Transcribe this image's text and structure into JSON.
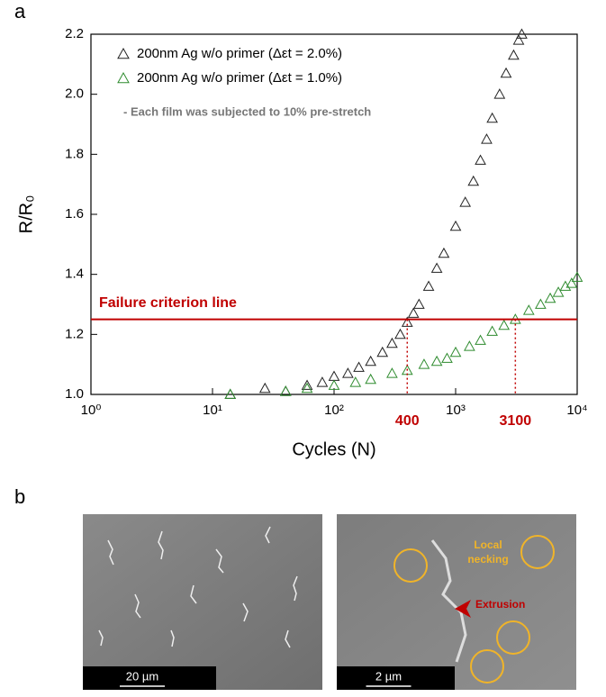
{
  "panel_labels": [
    "a",
    "b"
  ],
  "chart_data": {
    "type": "scatter",
    "xlabel": "Cycles (N)",
    "ylabel": "R/R₀",
    "xscale": "log",
    "xlim": [
      1,
      10000
    ],
    "ylim": [
      1.0,
      2.2
    ],
    "xticks": [
      {
        "value": 1,
        "label": "10⁰"
      },
      {
        "value": 10,
        "label": "10¹"
      },
      {
        "value": 100,
        "label": "10²"
      },
      {
        "value": 1000,
        "label": "10³"
      },
      {
        "value": 10000,
        "label": "10⁴"
      }
    ],
    "yticks": [
      {
        "value": 1.0,
        "label": "1.0"
      },
      1.2,
      1.4,
      1.6,
      1.8,
      {
        "value": 2.0,
        "label": "2.0"
      },
      2.2
    ],
    "series": [
      {
        "name": "200nm Ag w/o primer (Δεt = 2.0%)",
        "color": "#222222",
        "x": [
          14,
          27,
          40,
          60,
          80,
          100,
          130,
          160,
          200,
          250,
          300,
          350,
          400,
          450,
          500,
          600,
          700,
          800,
          1000,
          1200,
          1400,
          1600,
          1800,
          2000,
          2300,
          2600,
          3000,
          3300,
          3500
        ],
        "values": [
          1.0,
          1.02,
          1.01,
          1.03,
          1.04,
          1.06,
          1.07,
          1.09,
          1.11,
          1.14,
          1.17,
          1.2,
          1.24,
          1.27,
          1.3,
          1.36,
          1.42,
          1.47,
          1.56,
          1.64,
          1.71,
          1.78,
          1.85,
          1.92,
          2.0,
          2.07,
          2.13,
          2.18,
          2.2
        ]
      },
      {
        "name": "200nm Ag w/o primer (Δεt = 1.0%)",
        "color": "#2e8b2e",
        "x": [
          14,
          40,
          60,
          100,
          150,
          200,
          300,
          400,
          550,
          700,
          850,
          1000,
          1300,
          1600,
          2000,
          2500,
          3100,
          4000,
          5000,
          6000,
          7000,
          8000,
          9000,
          10000
        ],
        "values": [
          1.0,
          1.01,
          1.02,
          1.03,
          1.04,
          1.05,
          1.07,
          1.08,
          1.1,
          1.11,
          1.12,
          1.14,
          1.16,
          1.18,
          1.21,
          1.23,
          1.25,
          1.28,
          1.3,
          1.32,
          1.34,
          1.36,
          1.37,
          1.39
        ]
      }
    ],
    "note": "- Each film was subjected to 10% pre-stretch",
    "hlines": [
      {
        "y": 1.25,
        "label": "Failure criterion line",
        "color": "#c00000"
      }
    ],
    "vlines": [
      {
        "x": 400,
        "color": "#c00000"
      },
      {
        "x": 3100,
        "color": "#c00000"
      }
    ]
  },
  "images": [
    {
      "scale_bar": "20 µm"
    },
    {
      "scale_bar": "2 µm",
      "annotations": [
        [
          "Local",
          "necking"
        ],
        [
          "Extrusion"
        ]
      ]
    }
  ]
}
